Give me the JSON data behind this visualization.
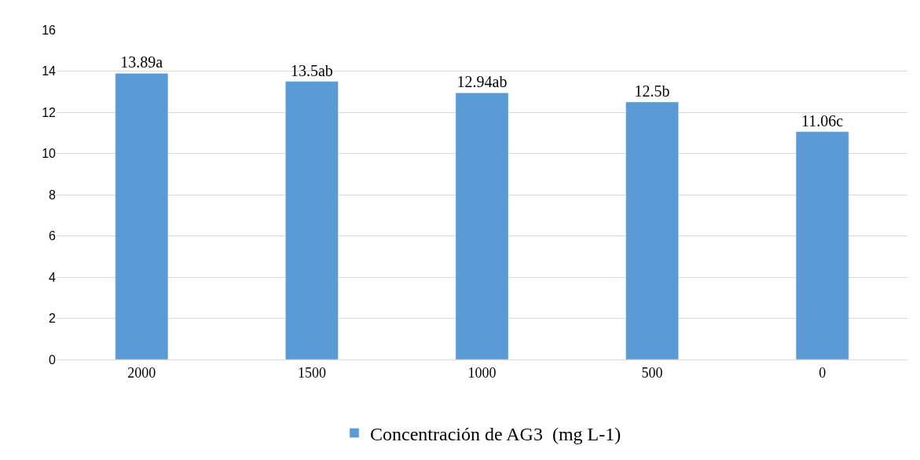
{
  "chart_data": {
    "type": "bar",
    "categories": [
      "2000",
      "1500",
      "1000",
      "500",
      "0"
    ],
    "series": [
      {
        "name": "Concentración de AG3  (mg L-1)",
        "color": "#5b9bd5",
        "values": [
          13.89,
          13.5,
          12.94,
          12.5,
          11.06
        ],
        "value_labels": [
          "13.89a",
          "13.5ab",
          "12.94ab",
          "12.5b",
          "11.06c"
        ]
      }
    ],
    "ylim": [
      0,
      16
    ],
    "yticks": [
      0,
      2,
      4,
      6,
      8,
      10,
      12,
      14,
      16
    ],
    "grid": "y",
    "legend": "bottom"
  }
}
